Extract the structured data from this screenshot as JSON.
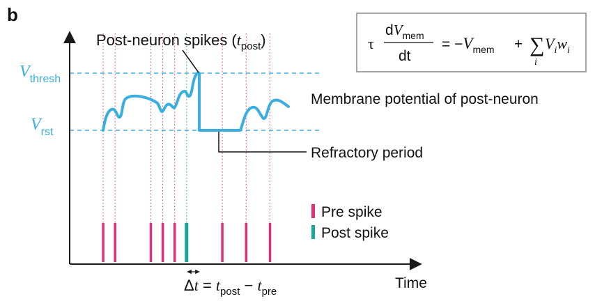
{
  "panel_label": "b",
  "colors": {
    "membrane": "#3aaee0",
    "threshold_line": "#3aaee0",
    "pre_spike": "#e0307a",
    "post_spike": "#17a89a",
    "axis": "#1a1a1a",
    "box_border": "#888888"
  },
  "axes": {
    "y_labels": {
      "thresh": {
        "main": "V",
        "sub": "thresh"
      },
      "rst": {
        "main": "V",
        "sub": "rst"
      }
    },
    "x_label": "Time"
  },
  "annotations": {
    "post_neuron_spikes": {
      "text": "Post-neuron spikes (",
      "var": "t",
      "sub": "post",
      "close": ")"
    },
    "membrane_potential": "Membrane potential of post-neuron",
    "refractory_period": "Refractory period"
  },
  "legend": {
    "pre_spike": "Pre spike",
    "post_spike": "Post spike"
  },
  "delta_t": {
    "delta": "Δ",
    "t": "t",
    "eq": " = ",
    "t_post": "t",
    "post_sub": "post",
    "minus": " − ",
    "t_pre": "t",
    "pre_sub": "pre"
  },
  "equation": {
    "tau": "τ",
    "d_num": "d",
    "V_num": "V",
    "mem_num": "mem",
    "denominator": "dt",
    "eq_minus": "= −",
    "V_rhs": "V",
    "mem_rhs": "mem",
    "plus": "+",
    "sum": "∑",
    "sum_index": "i",
    "Vi": "V",
    "i1": "i",
    "wi": "w",
    "i2": "i"
  },
  "spike_train": {
    "pre_times": [
      1,
      2,
      5,
      6,
      7,
      11,
      13,
      15
    ],
    "post_time": 8
  }
}
